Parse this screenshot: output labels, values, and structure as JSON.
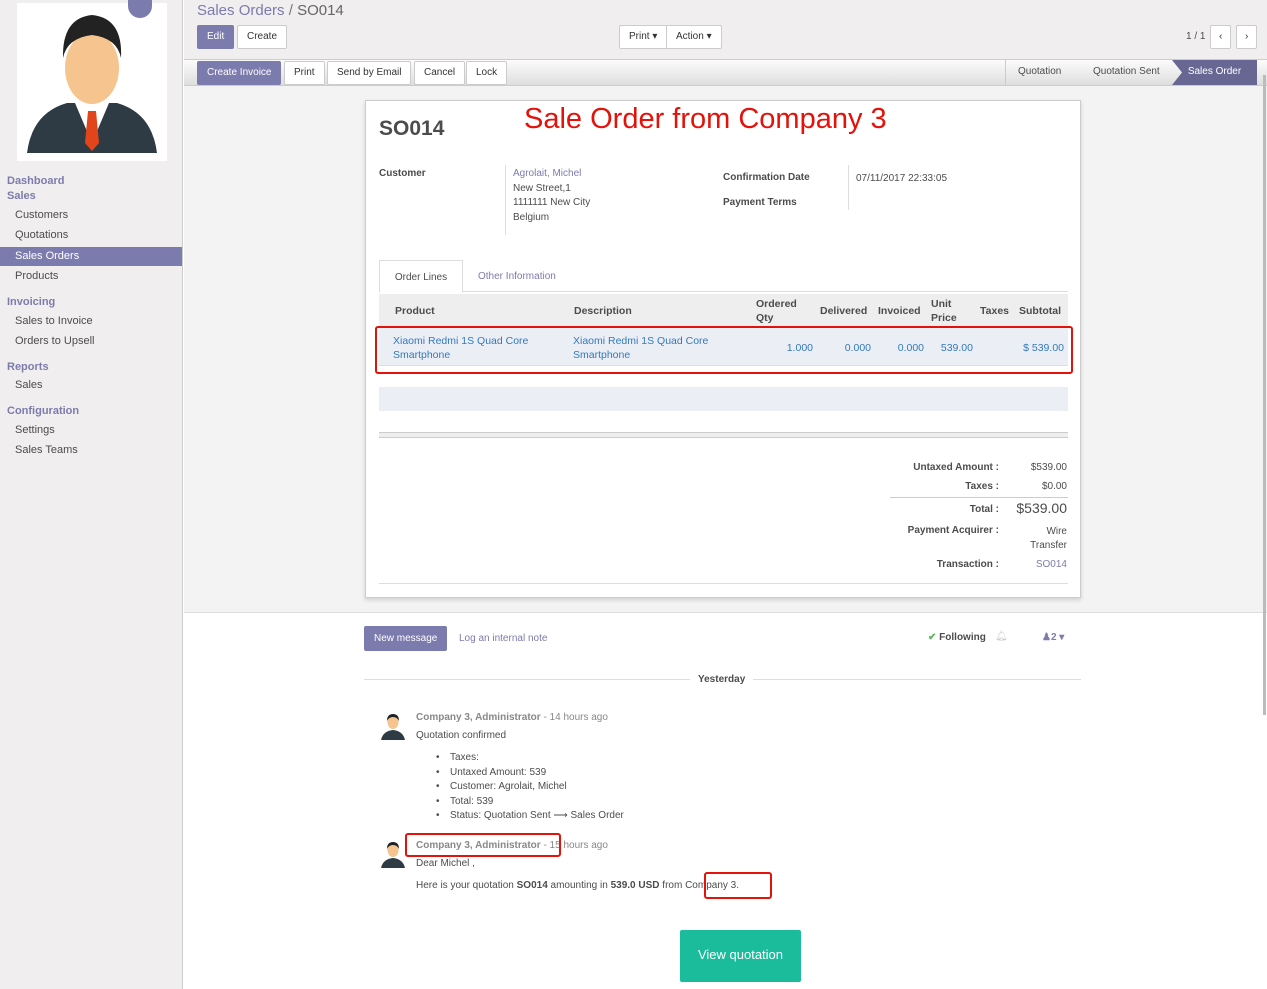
{
  "sidebar": {
    "sections": [
      {
        "title": "Dashboard"
      },
      {
        "title": "Sales",
        "items": [
          "Customers",
          "Quotations",
          "Sales Orders",
          "Products"
        ]
      },
      {
        "title": "Invoicing",
        "items": [
          "Sales to Invoice",
          "Orders to Upsell"
        ]
      },
      {
        "title": "Reports",
        "items": [
          "Sales"
        ]
      },
      {
        "title": "Configuration",
        "items": [
          "Settings",
          "Sales Teams"
        ]
      }
    ],
    "active": "Sales Orders"
  },
  "breadcrumb": {
    "parent": "Sales Orders",
    "separator": "/",
    "current": "SO014"
  },
  "toolbar": {
    "edit": "Edit",
    "create": "Create",
    "print": "Print",
    "action": "Action",
    "pager": "1 / 1"
  },
  "actions": {
    "create_invoice": "Create Invoice",
    "print": "Print",
    "send_email": "Send by Email",
    "cancel": "Cancel",
    "lock": "Lock"
  },
  "stages": [
    "Quotation",
    "Quotation Sent",
    "Sales Order"
  ],
  "active_stage": "Sales Order",
  "annotation": "Sale Order from Company 3",
  "order": {
    "name": "SO014",
    "customer_label": "Customer",
    "customer_name": "Agrolait, Michel",
    "address": [
      "New Street,1",
      "1111111 New City",
      "Belgium"
    ],
    "confirmation_label": "Confirmation Date",
    "confirmation_date": "07/11/2017 22:33:05",
    "payment_terms_label": "Payment Terms"
  },
  "tabs": [
    "Order Lines",
    "Other Information"
  ],
  "lines": {
    "headers": [
      "Product",
      "Description",
      "Ordered Qty",
      "Delivered",
      "Invoiced",
      "Unit Price",
      "Taxes",
      "Subtotal"
    ],
    "rows": [
      {
        "product": "Xiaomi Redmi 1S Quad Core Smartphone",
        "description": "Xiaomi Redmi 1S Quad Core Smartphone",
        "qty": "1.000",
        "delivered": "0.000",
        "invoiced": "0.000",
        "price": "539.00",
        "taxes": "",
        "subtotal": "$ 539.00"
      }
    ]
  },
  "totals": {
    "untaxed_label": "Untaxed Amount :",
    "untaxed": "$539.00",
    "taxes_label": "Taxes :",
    "taxes": "$0.00",
    "total_label": "Total :",
    "total": "$539.00",
    "acquirer_label": "Payment Acquirer :",
    "acquirer": "Wire Transfer",
    "transaction_label": "Transaction :",
    "transaction": "SO014"
  },
  "chatter": {
    "new_message": "New message",
    "log_note": "Log an internal note",
    "following": "Following",
    "followers": "2",
    "date_sep": "Yesterday",
    "messages": [
      {
        "author": "Company 3, Administrator",
        "time": "- 14 hours ago",
        "body": "Quotation confirmed",
        "items": [
          "Taxes:",
          "Untaxed Amount: 539",
          "Customer: Agrolait, Michel",
          "Total: 539",
          "Status: Quotation Sent ⟶ Sales Order"
        ]
      },
      {
        "author": "Company 3, Administrator",
        "time": "- 15 hours ago",
        "greeting": "Dear Michel ,",
        "line_a": "Here is your quotation ",
        "line_b": "SO014",
        "line_c": " amounting in ",
        "line_d": "539.0 USD",
        "line_e": " from ",
        "line_f": "Company 3."
      }
    ],
    "view_quotation": "View quotation"
  },
  "colors": {
    "brand": "#7c7bad",
    "link": "#337ab7",
    "annotation": "#e3120b",
    "cta": "#1abc9c"
  }
}
